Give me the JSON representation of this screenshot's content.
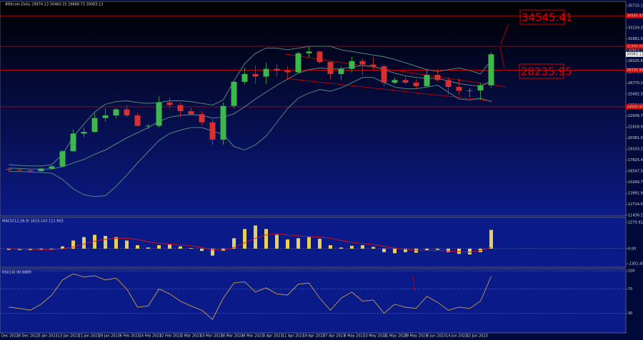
{
  "chart_data": [
    {
      "type": "candlestick",
      "title": "#Bitcoin,Daily  29974.13 30460.33 29888.73 30083.13",
      "xticks": [
        "20 Dec 2022",
        "28 Dec 2022",
        "5 Jan 2023",
        "13 Jan 2023",
        "21 Jan 2023",
        "29 Jan 2023",
        "6 Feb 2023",
        "14 Feb 2023",
        "22 Feb 2023",
        "2 Mar 2023",
        "10 Mar 2023",
        "18 Mar 2023",
        "26 Mar 2023",
        "3 Apr 2023",
        "11 Apr 2023",
        "19 Apr 2023",
        "27 Apr 2023",
        "5 May 2023",
        "13 May 2023",
        "21 May 2023",
        "29 May 2023",
        "6 Jun 2023",
        "14 Jun 2023",
        "22 Jun 2023"
      ],
      "open": [
        16800,
        16700,
        16640,
        16550,
        16850,
        17100,
        18850,
        20900,
        21100,
        22700,
        23000,
        23700,
        23000,
        21800,
        21800,
        24500,
        24200,
        23500,
        23150,
        22200,
        20200,
        24100,
        26900,
        27800,
        27500,
        28400,
        28200,
        28000,
        30200,
        30400,
        29200,
        27800,
        28400,
        29300,
        28900,
        28700,
        26800,
        27100,
        26800,
        26400,
        27700,
        27100,
        26300,
        25850,
        25900,
        26500
      ],
      "high": [
        16900,
        16880,
        16700,
        16900,
        17200,
        19000,
        21400,
        21600,
        23300,
        23800,
        23900,
        24200,
        23300,
        22000,
        25200,
        25100,
        24500,
        23900,
        23500,
        22600,
        24500,
        27000,
        28500,
        28800,
        29100,
        29000,
        28700,
        30400,
        31000,
        30500,
        29300,
        28700,
        29800,
        29600,
        29800,
        28900,
        27400,
        27500,
        27200,
        28400,
        28400,
        27400,
        27300,
        26200,
        26800,
        30300
      ],
      "low": [
        16500,
        16550,
        16400,
        16500,
        16800,
        17050,
        18800,
        20500,
        21000,
        22300,
        22700,
        22800,
        21700,
        21400,
        21600,
        23800,
        22800,
        23100,
        21900,
        19600,
        19600,
        23800,
        26600,
        26700,
        26600,
        27500,
        27300,
        27900,
        29700,
        29000,
        27200,
        27100,
        28000,
        27700,
        28300,
        26400,
        26600,
        26600,
        26100,
        26300,
        26900,
        25400,
        25400,
        25100,
        24800,
        26200
      ],
      "close": [
        16700,
        16640,
        16550,
        16850,
        17100,
        18850,
        20900,
        21100,
        22700,
        23000,
        23700,
        23000,
        21800,
        21800,
        24500,
        24200,
        23500,
        23150,
        22200,
        20200,
        24100,
        26900,
        27800,
        27500,
        28400,
        28200,
        28000,
        30200,
        30400,
        29200,
        27800,
        28400,
        29300,
        28900,
        28700,
        26800,
        27100,
        26800,
        26400,
        27700,
        27100,
        26300,
        25850,
        25900,
        26500,
        30083.13
      ],
      "up_color": "#3cb84c",
      "down_color": "#d83030",
      "series": [
        {
          "color": "#5e9384",
          "values": [
            17300,
            17200,
            17150,
            17150,
            17300,
            18500,
            20500,
            22000,
            23400,
            24300,
            24600,
            24700,
            24500,
            24400,
            24500,
            24700,
            24700,
            24600,
            24400,
            24200,
            24800,
            27000,
            29000,
            30200,
            30800,
            30800,
            30600,
            30800,
            31000,
            31000,
            31000,
            30600,
            30400,
            30200,
            30000,
            29800,
            29500,
            29100,
            28700,
            28300,
            28100,
            28300,
            28500,
            28200,
            27800,
            29400
          ]
        },
        {
          "color": "#5e9384",
          "values": [
            16900,
            16850,
            16800,
            16780,
            16800,
            17050,
            17500,
            17900,
            18500,
            19000,
            19700,
            20400,
            21000,
            21600,
            22300,
            22800,
            23000,
            23100,
            23000,
            22700,
            22800,
            23200,
            24000,
            24900,
            25700,
            26500,
            27200,
            27900,
            28300,
            28500,
            28400,
            28400,
            28600,
            28800,
            28700,
            28300,
            27900,
            27600,
            27400,
            27300,
            27300,
            27000,
            26700,
            26500,
            26400,
            27000
          ]
        },
        {
          "color": "#5e9384",
          "values": [
            16500,
            16500,
            16450,
            16400,
            16300,
            15600,
            14500,
            13800,
            13600,
            13700,
            14800,
            16100,
            17500,
            18800,
            20100,
            20900,
            21300,
            21600,
            21600,
            21200,
            20800,
            19400,
            19000,
            19600,
            20600,
            22200,
            23800,
            25000,
            25600,
            26000,
            25800,
            26200,
            26800,
            27400,
            27400,
            26800,
            26300,
            26100,
            26100,
            26300,
            26500,
            25700,
            24900,
            24800,
            25000,
            24600
          ]
        }
      ],
      "levels": [
        {
          "value": 34545.41,
          "label": "34545.41"
        },
        {
          "value": 31000,
          "label": "31000.00"
        },
        {
          "value": 28235.95,
          "label": "28235.95"
        },
        {
          "value": 24000,
          "label": "24000.00"
        }
      ],
      "level_color": "#d00000",
      "last_price": {
        "value": 30083.13,
        "label": "30083.13"
      },
      "ylim": [
        11436.26,
        35715.14
      ],
      "yticks": [
        {
          "value": 11436.26,
          "label": "11436.26"
        },
        {
          "value": 12714.09,
          "label": "12714.09"
        },
        {
          "value": 13991.92,
          "label": "13991.92"
        },
        {
          "value": 15269.75,
          "label": "15269.75"
        },
        {
          "value": 16547.58,
          "label": "16547.58"
        },
        {
          "value": 17825.41,
          "label": "17825.41"
        },
        {
          "value": 19103.24,
          "label": "19103.24"
        },
        {
          "value": 20381.07,
          "label": "20381.07"
        },
        {
          "value": 21658.9,
          "label": "21658.90"
        },
        {
          "value": 22936.73,
          "label": "22936.73"
        },
        {
          "value": 24214.56,
          "label": "24214.56"
        },
        {
          "value": 25492.39,
          "label": "25492.39"
        },
        {
          "value": 26770.22,
          "label": "26770.22"
        },
        {
          "value": 28048.05,
          "label": "28048.05"
        },
        {
          "value": 29325.88,
          "label": "29325.88"
        },
        {
          "value": 30603.71,
          "label": "30603.71"
        },
        {
          "value": 31881.54,
          "label": "31881.54"
        },
        {
          "value": 33159.37,
          "label": "33159.37"
        },
        {
          "value": 34437.2,
          "label": "34437.20"
        },
        {
          "value": 35715.14,
          "label": "35715.14"
        }
      ]
    },
    {
      "type": "bar",
      "title": "MACD(12,26,9) 1623.143 111.903",
      "values": [
        -100,
        -120,
        -130,
        -110,
        -60,
        200,
        700,
        1000,
        1200,
        1100,
        1000,
        700,
        300,
        100,
        300,
        350,
        200,
        50,
        -200,
        -600,
        -200,
        900,
        1700,
        2000,
        1700,
        1200,
        800,
        900,
        1000,
        850,
        300,
        100,
        250,
        300,
        150,
        -300,
        -400,
        -300,
        -350,
        -150,
        -100,
        -300,
        -450,
        -500,
        -300,
        1623.143
      ],
      "color": "#e6cf5a",
      "series": [
        {
          "color": "#e01010",
          "values": [
            0,
            -30,
            -60,
            -80,
            -80,
            -20,
            150,
            400,
            650,
            800,
            900,
            900,
            800,
            600,
            450,
            400,
            350,
            250,
            100,
            -100,
            -150,
            100,
            500,
            900,
            1200,
            1300,
            1200,
            1100,
            1050,
            1000,
            900,
            700,
            550,
            450,
            350,
            200,
            50,
            -50,
            -150,
            -150,
            -150,
            -200,
            -250,
            -300,
            -150,
            111.903
          ]
        }
      ],
      "ylim": [
        -1301.459,
        2270.914
      ],
      "yticks": [
        {
          "value": -1301.459,
          "label": "-1301.459"
        },
        {
          "value": 0,
          "label": "0.00"
        },
        {
          "value": 2270.914,
          "label": "2270.914"
        }
      ]
    },
    {
      "type": "line",
      "title": "RSI(14) 90.8889",
      "series": [
        {
          "color": "#c8a048",
          "values": [
            40,
            38,
            35,
            45,
            60,
            85,
            95,
            90,
            92,
            85,
            88,
            70,
            40,
            42,
            70,
            62,
            50,
            42,
            35,
            20,
            55,
            80,
            82,
            65,
            72,
            62,
            60,
            78,
            80,
            55,
            35,
            55,
            65,
            50,
            52,
            30,
            45,
            40,
            38,
            58,
            48,
            35,
            40,
            38,
            50,
            90.8889
          ]
        }
      ],
      "ylim": [
        0,
        100
      ],
      "yticks": [
        30,
        70,
        100
      ]
    }
  ]
}
